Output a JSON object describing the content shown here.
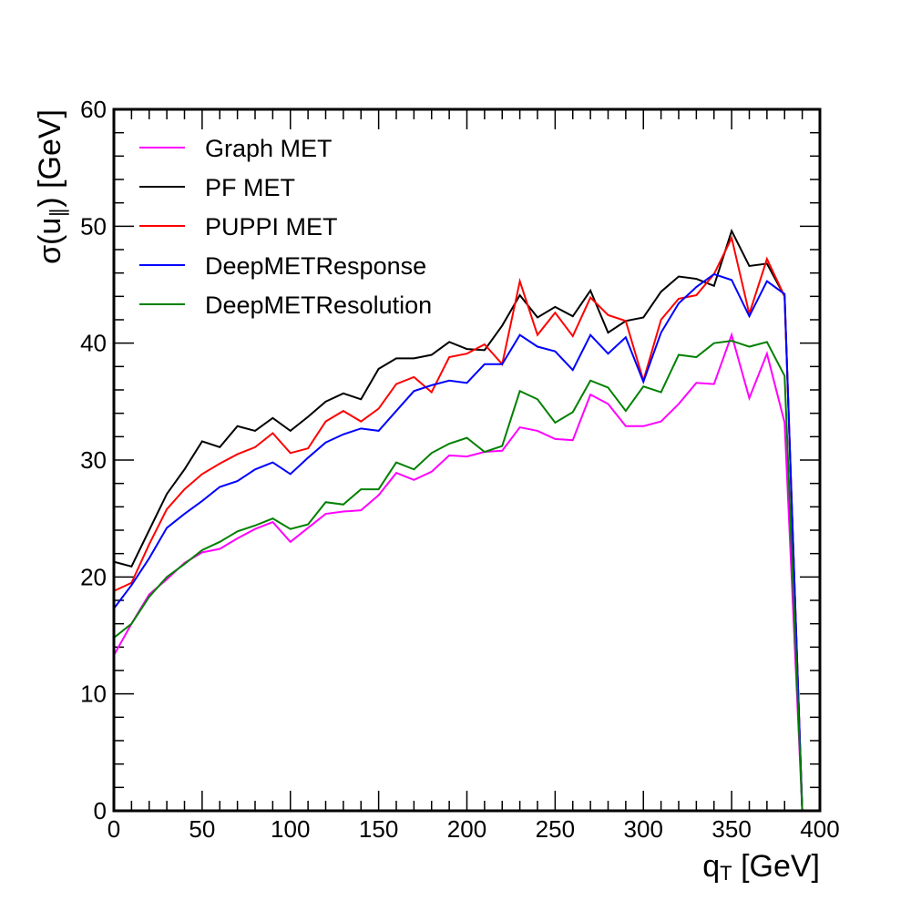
{
  "chart_data": {
    "type": "line",
    "title": "",
    "xlabel": {
      "main": "q",
      "sub": "T",
      "unit": " [GeV]"
    },
    "ylabel": {
      "prefix": "σ(u",
      "sub": "∥",
      "suffix": ") [GeV]"
    },
    "xlim": [
      0,
      400
    ],
    "ylim": [
      0,
      60
    ],
    "x_ticks": [
      "0",
      "50",
      "100",
      "150",
      "200",
      "250",
      "300",
      "350",
      "400"
    ],
    "y_ticks": [
      "0",
      "10",
      "20",
      "30",
      "40",
      "50",
      "60"
    ],
    "grid": false,
    "legend_position": "top-left",
    "x": [
      0,
      10,
      20,
      30,
      40,
      50,
      60,
      70,
      80,
      90,
      100,
      110,
      120,
      130,
      140,
      150,
      160,
      170,
      180,
      190,
      200,
      210,
      220,
      230,
      240,
      250,
      260,
      270,
      280,
      290,
      300,
      310,
      320,
      330,
      340,
      350,
      360,
      370,
      380,
      390
    ],
    "series": [
      {
        "name": "Graph MET",
        "color": "#ff00ff",
        "values": [
          13.3,
          16.0,
          18.5,
          19.8,
          21.2,
          22.1,
          22.4,
          23.3,
          24.1,
          24.7,
          23.0,
          24.2,
          25.4,
          25.6,
          25.7,
          27.0,
          28.9,
          28.3,
          29.0,
          30.4,
          30.3,
          30.7,
          30.8,
          32.8,
          32.5,
          31.8,
          31.7,
          35.6,
          34.8,
          32.9,
          32.9,
          33.3,
          34.8,
          36.6,
          36.5,
          40.7,
          35.3,
          39.1,
          33.2,
          0.0
        ]
      },
      {
        "name": "PF MET",
        "color": "#000000",
        "values": [
          21.3,
          20.9,
          24.0,
          27.1,
          29.2,
          31.6,
          31.1,
          32.9,
          32.5,
          33.6,
          32.5,
          33.7,
          35.0,
          35.7,
          35.2,
          37.8,
          38.7,
          38.7,
          39.0,
          40.1,
          39.5,
          39.4,
          41.5,
          44.1,
          42.2,
          43.1,
          42.3,
          44.5,
          40.9,
          41.9,
          42.2,
          44.4,
          45.7,
          45.5,
          44.9,
          49.6,
          46.6,
          46.8,
          44.0,
          0.0
        ]
      },
      {
        "name": "PUPPI MET",
        "color": "#ff0000",
        "values": [
          18.8,
          19.5,
          22.8,
          25.8,
          27.5,
          28.8,
          29.7,
          30.5,
          31.1,
          32.3,
          30.6,
          31.0,
          33.3,
          34.2,
          33.3,
          34.4,
          36.5,
          37.1,
          35.8,
          38.8,
          39.1,
          39.9,
          38.2,
          45.3,
          40.7,
          42.6,
          40.6,
          43.9,
          42.4,
          41.9,
          36.8,
          42.0,
          43.8,
          44.1,
          45.9,
          49.0,
          42.5,
          47.2,
          44.0,
          0.0
        ]
      },
      {
        "name": "DeepMETResponse",
        "color": "#0000ff",
        "values": [
          17.3,
          19.3,
          21.6,
          24.2,
          25.4,
          26.5,
          27.7,
          28.2,
          29.2,
          29.8,
          28.8,
          30.2,
          31.5,
          32.2,
          32.7,
          32.5,
          34.2,
          35.9,
          36.4,
          36.8,
          36.6,
          38.2,
          38.2,
          40.7,
          39.7,
          39.3,
          37.7,
          40.7,
          39.1,
          40.5,
          36.7,
          40.9,
          43.4,
          44.8,
          45.9,
          45.4,
          42.3,
          45.3,
          44.2,
          0.0
        ]
      },
      {
        "name": "DeepMETResolution",
        "color": "#008000",
        "values": [
          14.8,
          16.0,
          18.3,
          20.0,
          21.1,
          22.3,
          23.0,
          23.9,
          24.4,
          25.0,
          24.1,
          24.5,
          26.4,
          26.2,
          27.5,
          27.5,
          29.8,
          29.2,
          30.6,
          31.4,
          31.9,
          30.7,
          31.2,
          35.9,
          35.2,
          33.2,
          34.1,
          36.8,
          36.2,
          34.2,
          36.3,
          35.8,
          39.0,
          38.8,
          40.0,
          40.2,
          39.7,
          40.1,
          37.2,
          0.0
        ]
      }
    ]
  }
}
